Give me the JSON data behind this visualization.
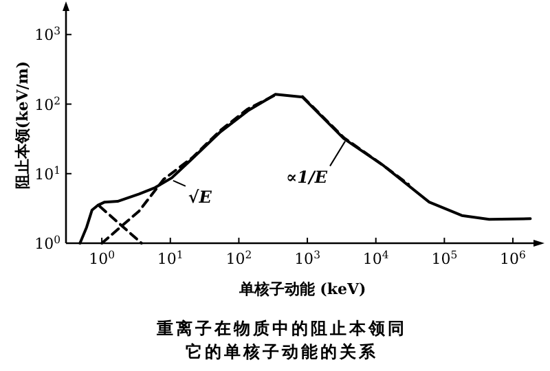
{
  "chart_data": {
    "type": "line",
    "title": "重离子在物质中的阻止本领同它的单核子动能的关系",
    "xlabel": "单核子动能 (keV)",
    "ylabel": "阻止本领(keV/m)",
    "log": "xy",
    "xlim": [
      0.3,
      2000000
    ],
    "ylim": [
      1,
      2500
    ],
    "xticks": [
      {
        "value": 1,
        "label": "10$^{0}$"
      },
      {
        "value": 10,
        "label": "10$^{1}$"
      },
      {
        "value": 100,
        "label": "10$^{2}$"
      },
      {
        "value": 1000,
        "label": "10$^{3}$"
      },
      {
        "value": 10000,
        "label": "10$^{4}$"
      },
      {
        "value": 100000,
        "label": "10$^{5}$"
      },
      {
        "value": 1000000,
        "label": "10$^{6}$"
      }
    ],
    "yticks": [
      {
        "value": 1,
        "label": "10$^{0}$"
      },
      {
        "value": 10,
        "label": "10$^{1}$"
      },
      {
        "value": 100,
        "label": "10$^{2}$"
      },
      {
        "value": 1000,
        "label": "10$^{3}$"
      }
    ],
    "grid": false,
    "series": [
      {
        "color": "#000000",
        "line_style": "solid",
        "x": [
          0.48,
          0.6,
          0.72,
          0.87,
          1.1,
          1.7,
          3.5,
          6,
          10.5,
          21,
          54,
          135,
          270,
          340,
          850,
          3400,
          13000,
          60000,
          180000,
          450000,
          1800000
        ],
        "values": [
          1,
          1.7,
          3,
          3.5,
          3.9,
          4,
          5.1,
          6.3,
          8.7,
          16.5,
          40,
          80,
          120,
          138,
          126,
          32,
          13,
          3.9,
          2.5,
          2.2,
          2.25
        ]
      },
      {
        "color": "#000000",
        "line_style": "dashed",
        "x": [
          1,
          3.5,
          8,
          21,
          54,
          135,
          340
        ],
        "values": [
          1,
          2.9,
          8.3,
          17,
          42,
          85,
          135
        ]
      },
      {
        "color": "#000000",
        "line_style": "dashed",
        "x": [
          0.93,
          3.8
        ],
        "values": [
          3.4,
          1
        ]
      },
      {
        "color": "#000000",
        "line_style": "dashed",
        "x": [
          850,
          3400,
          13000,
          30000
        ],
        "values": [
          128,
          33,
          13,
          7
        ]
      }
    ],
    "annotations": [
      {
        "text": "√E",
        "x": 10.5,
        "y": 8.7
      },
      {
        "text": "∝1/E",
        "x": 3400,
        "y": 32
      }
    ]
  }
}
